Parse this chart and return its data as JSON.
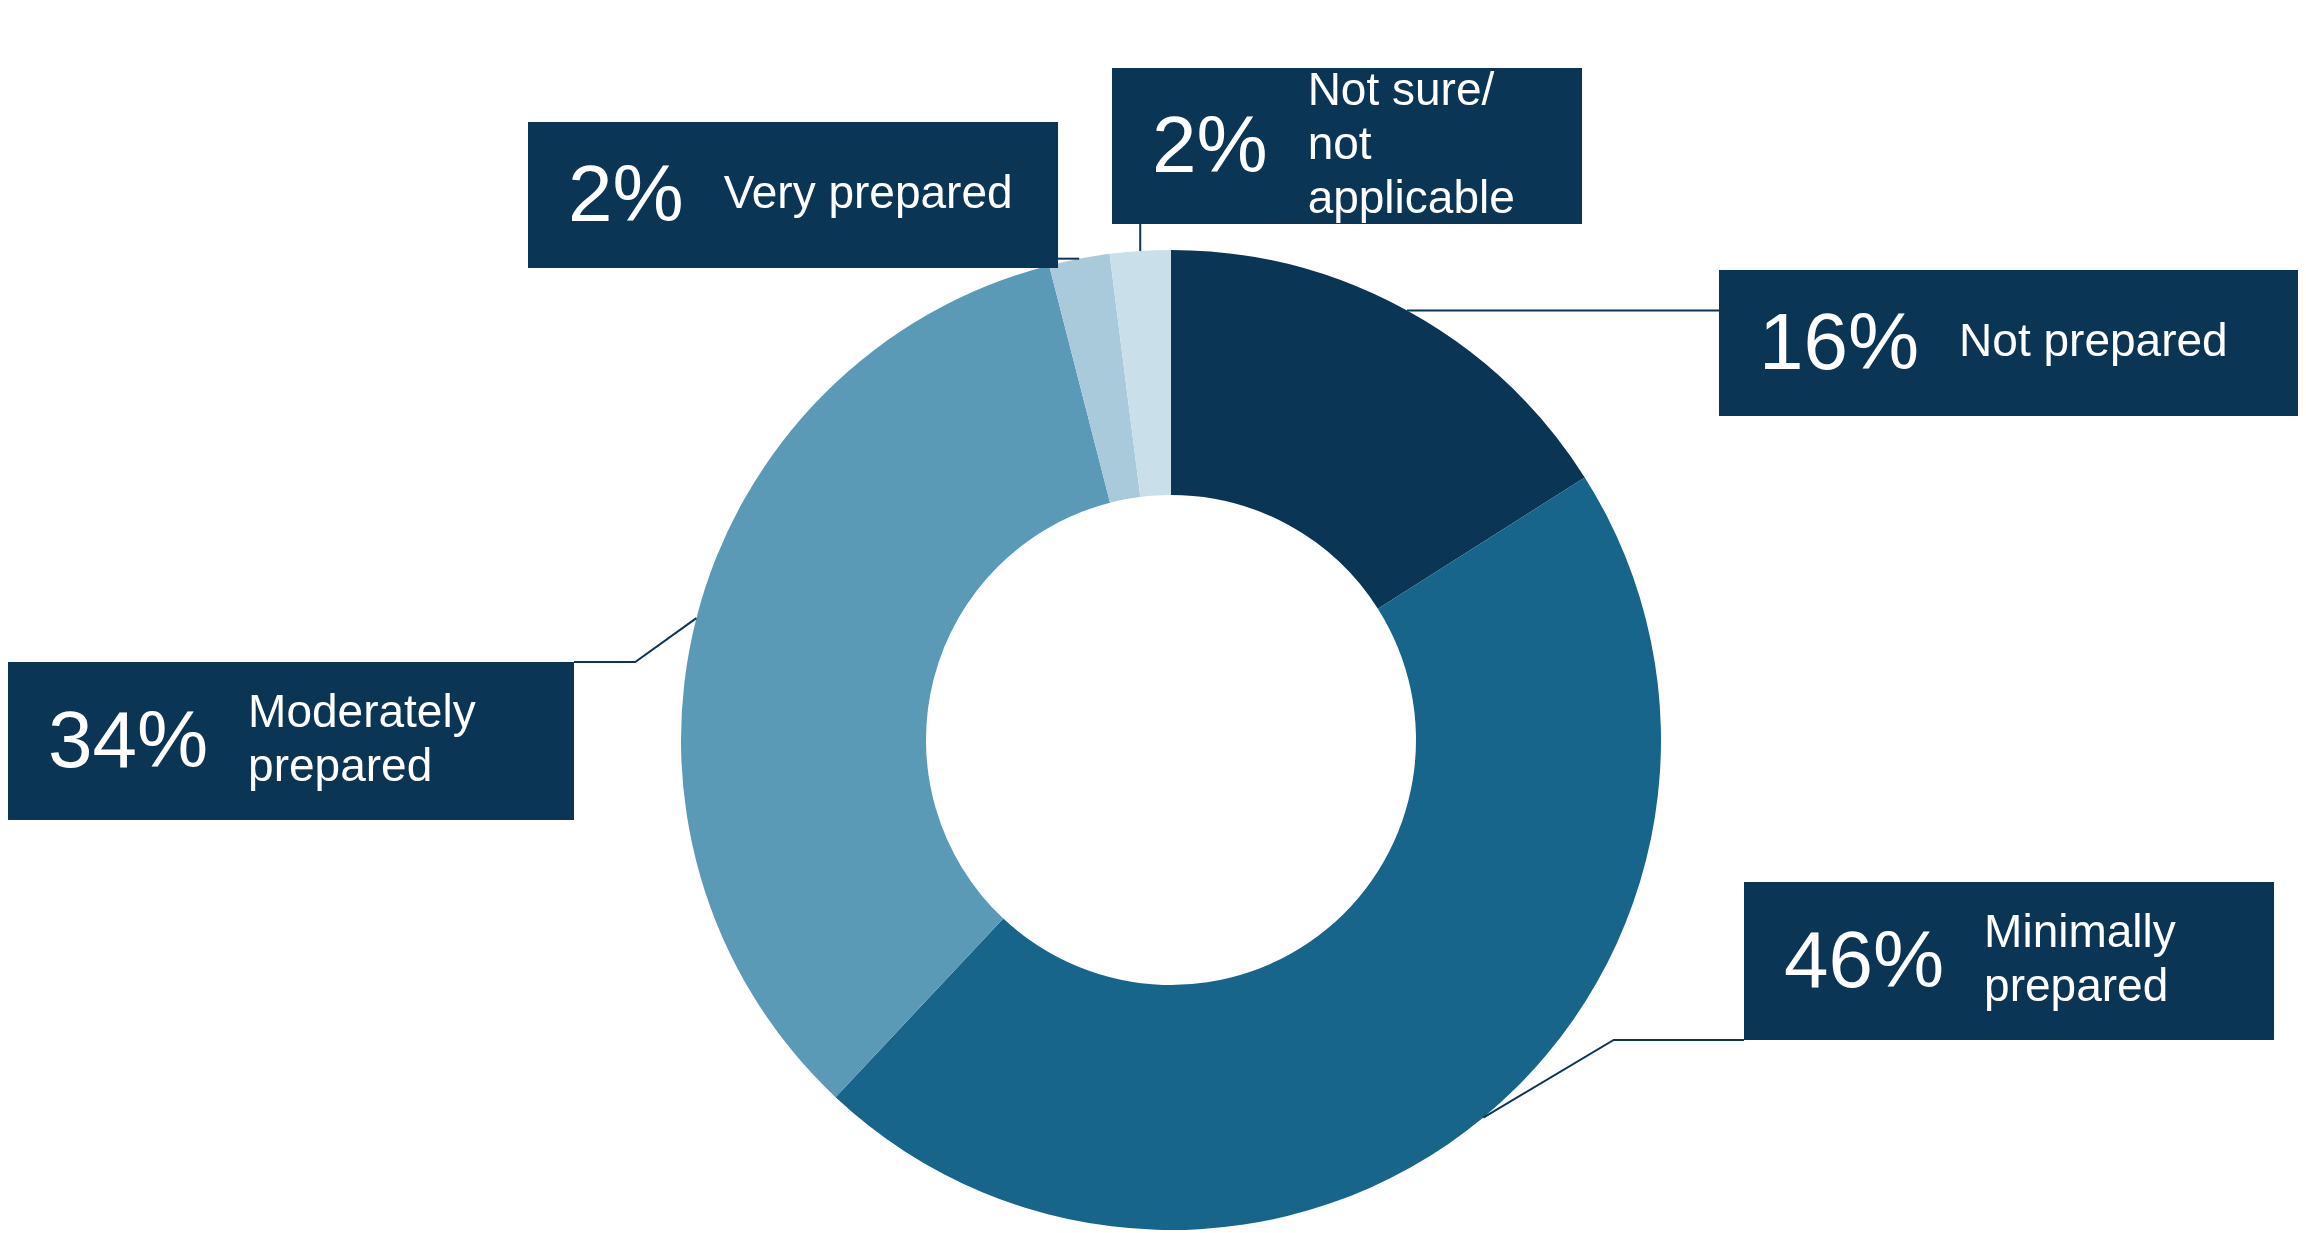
{
  "chart_data": {
    "type": "donut",
    "categories": [
      "Not prepared",
      "Minimally prepared",
      "Moderately prepared",
      "Very prepared",
      "Not sure/ not applicable"
    ],
    "values": [
      16,
      46,
      34,
      2,
      2
    ],
    "colors": [
      "#0b3555",
      "#17658a",
      "#5b9ab7",
      "#a8cadb",
      "#c9e0eb"
    ],
    "value_labels": [
      "16%",
      "46%",
      "34%",
      "2%",
      "2%"
    ],
    "legend": false
  }
}
